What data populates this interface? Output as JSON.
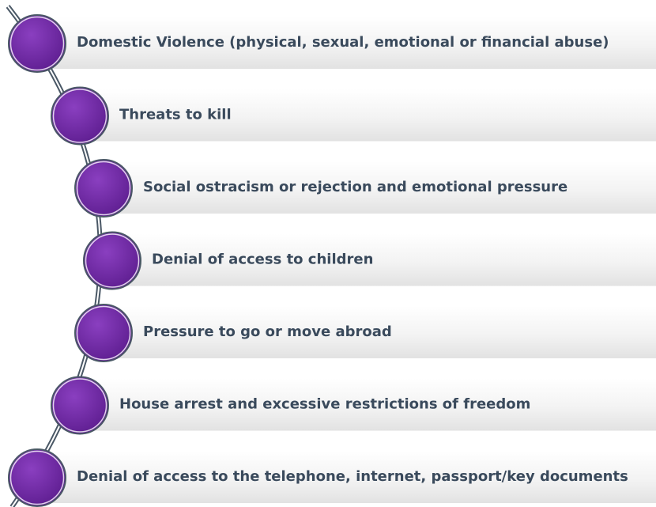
{
  "items": [
    {
      "label": "Domestic Violence (physical, sexual, emotional or financial abuse)"
    },
    {
      "label": "Threats to kill"
    },
    {
      "label": "Social ostracism or rejection and emotional pressure"
    },
    {
      "label": "Denial of access to children"
    },
    {
      "label": "Pressure to go or move abroad"
    },
    {
      "label": "House arrest and excessive restrictions of freedom"
    },
    {
      "label": "Denial of access to the telephone, internet, passport/key documents"
    }
  ]
}
